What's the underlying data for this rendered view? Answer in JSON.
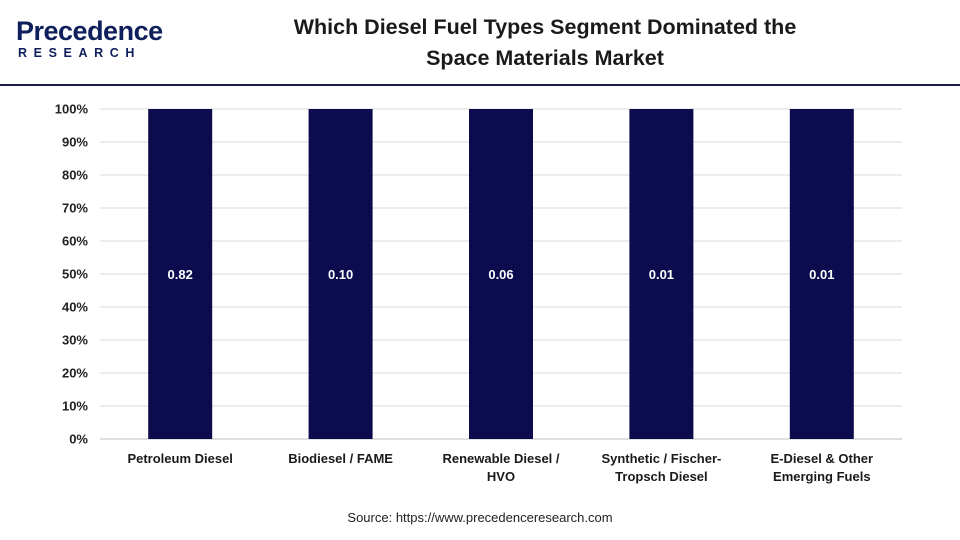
{
  "header": {
    "logo_top": "Precedence",
    "logo_bottom": "RESEARCH",
    "title_line1": "Which Diesel Fuel Types Segment Dominated the",
    "title_line2": "Space Materials Market"
  },
  "source": "Source: https://www.precedenceresearch.com",
  "colors": {
    "bar": "#0b0b4e",
    "grid": "#d9d9d9",
    "axis": "#bfbfbf",
    "brand": "#0f1f5c"
  },
  "chart_data": {
    "type": "bar",
    "stacked_percent": true,
    "categories": [
      [
        "Petroleum Diesel"
      ],
      [
        "Biodiesel / FAME"
      ],
      [
        "Renewable Diesel /",
        "HVO"
      ],
      [
        "Synthetic / Fischer-",
        "Tropsch Diesel"
      ],
      [
        "E-Diesel & Other",
        "Emerging Fuels"
      ]
    ],
    "values": [
      1.0,
      1.0,
      1.0,
      1.0,
      1.0
    ],
    "data_labels": [
      "0.82",
      "0.10",
      "0.06",
      "0.01",
      "0.01"
    ],
    "yticks": [
      "0%",
      "10%",
      "20%",
      "30%",
      "40%",
      "50%",
      "60%",
      "70%",
      "80%",
      "90%",
      "100%"
    ],
    "ylim": [
      0,
      1
    ],
    "grid": true
  }
}
